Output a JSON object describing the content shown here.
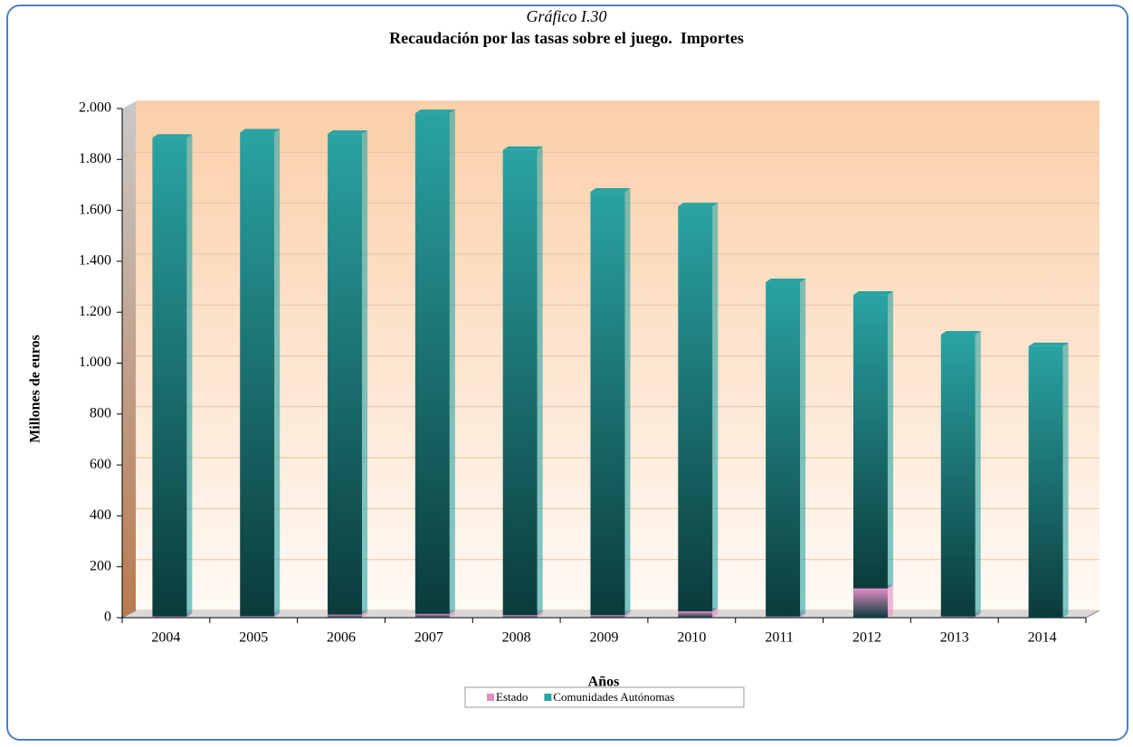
{
  "chart_data": {
    "type": "stacked_bar",
    "caption": "Gráfico I.30",
    "title": "Recaudación por las tasas sobre el juego.  Importes",
    "x_label": "Años",
    "y_label": "Millones de euros",
    "categories": [
      "2004",
      "2005",
      "2006",
      "2007",
      "2008",
      "2009",
      "2010",
      "2011",
      "2012",
      "2013",
      "2014"
    ],
    "series": [
      {
        "name": "Estado",
        "color": "#e48cc4",
        "values": [
          5,
          6,
          12,
          15,
          10,
          10,
          25,
          5,
          115,
          5,
          0
        ]
      },
      {
        "name": "Comunidades Autónomas",
        "color": "#2aa3a3",
        "values": [
          1880,
          1900,
          1888,
          1967,
          1827,
          1663,
          1591,
          1313,
          1153,
          1107,
          1066
        ]
      }
    ],
    "ylim": [
      0,
      2000
    ],
    "yticks": [
      0,
      200,
      400,
      600,
      800,
      {
        "value": 1000,
        "label": "1.000"
      },
      {
        "value": 1200,
        "label": "1.200"
      },
      {
        "value": 1400,
        "label": "1.400"
      },
      {
        "value": 1600,
        "label": "1.600"
      },
      {
        "value": 1800,
        "label": "1.800"
      },
      {
        "value": 2000,
        "label": "2.000"
      }
    ],
    "grid": true,
    "legend": "bottom"
  }
}
